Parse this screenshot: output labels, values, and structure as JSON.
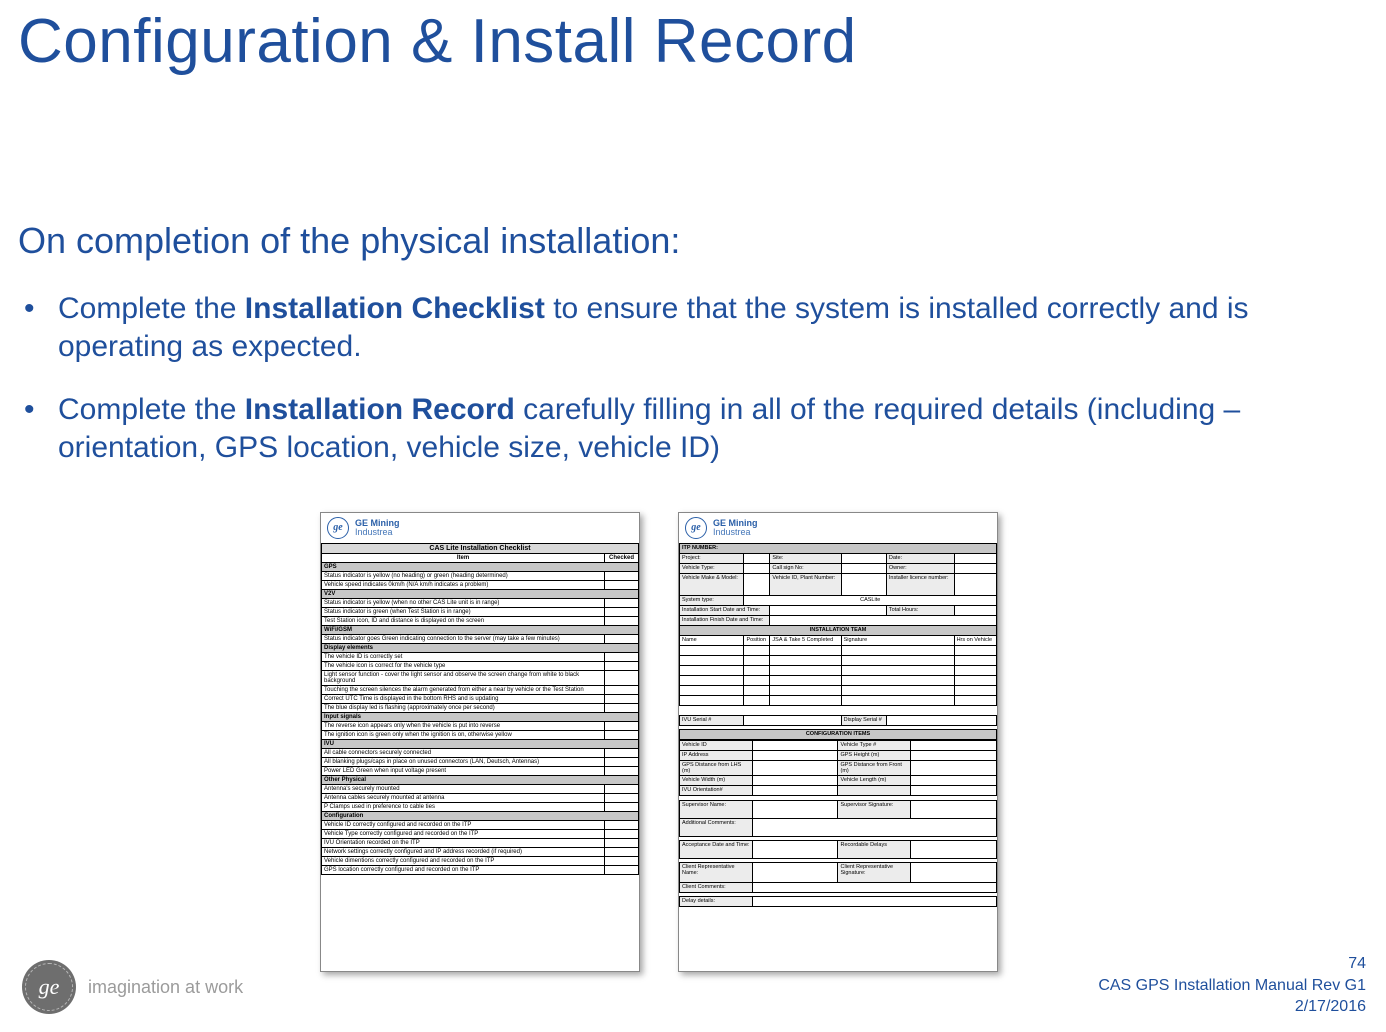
{
  "title": "Configuration & Install Record",
  "subtitle": "On completion of the physical installation:",
  "bullets": [
    {
      "prefix": "Complete the ",
      "bold": "Installation Checklist",
      "suffix": " to ensure that the system is installed correctly and is operating as expected."
    },
    {
      "prefix": "Complete the ",
      "bold": "Installation Record",
      "suffix": " carefully filling in all of the required details (including – orientation, GPS location, vehicle size, vehicle ID)"
    }
  ],
  "checklist": {
    "brand_line1": "GE Mining",
    "brand_line2": "Industrea",
    "title": "CAS Lite Installation Checklist",
    "col_item": "Item",
    "col_checked": "Checked",
    "sections": [
      {
        "name": "GPS",
        "rows": [
          "Status indicator is yellow (no heading) or green (heading determined)",
          "Vehicle speed indicates 0km/h (N/A km/h indicates a problem)"
        ]
      },
      {
        "name": "V2V",
        "rows": [
          "Status indicator is yellow (when no other CAS Lite unit is in range)",
          "Status indicator is green (when Test Station is in range)",
          "Test Station icon, ID and distance is displayed on the screen"
        ]
      },
      {
        "name": "WiFi/GSM",
        "rows": [
          "Status indicator goes Green indicating connection to the server (may take a few minutes)"
        ]
      },
      {
        "name": "Display elements",
        "rows": [
          "The vehicle ID is correctly set",
          "The vehicle icon is correct for the vehicle type",
          "Light sensor function - cover the light sensor and observe the screen change from white to black background",
          "Touching the screen silences the alarm generated from either a near by vehicle or the Test Station",
          "Correct UTC Time is displayed in the bottom RHS and is updating",
          "The blue display led is flashing (approximately once per second)"
        ]
      },
      {
        "name": "Input signals",
        "rows": [
          "The reverse icon appears only when the vehicle is put into reverse",
          "The ignition icon is green only when the ignition is on, otherwise yellow"
        ]
      },
      {
        "name": "IVU",
        "rows": [
          "All cable connectors securely connected",
          "All blanking plugs/caps in place on unused connectors (LAN, Deutsch, Antennas)",
          "Power LED Green when input voltage present"
        ]
      },
      {
        "name": "Other Physical",
        "rows": [
          "Antenna's securely mounted",
          "Antenna cables securely mounted at antenna",
          "P Clamps used in preference to cable ties"
        ]
      },
      {
        "name": "Configuration",
        "rows": [
          "Vehicle ID correctly configured and recorded on the ITP",
          "Vehicle Type correctly configured and recorded on the ITP",
          "IVU Orientation recorded on the ITP",
          "Network settings correctly configured and IP address recorded (if required)",
          "Vehicle dimentions correctly configured and recorded on the ITP",
          "GPS location correctly configured and recorded on the ITP"
        ]
      }
    ]
  },
  "record": {
    "brand_line1": "GE Mining",
    "brand_line2": "Industrea",
    "itp_number": "ITP NUMBER:",
    "row1": [
      "Project:",
      "Site:",
      "Date:"
    ],
    "row2": [
      "Vehicle Type:",
      "Call sign No:",
      "Owner:"
    ],
    "row3a": "Vehicle Make & Model:",
    "row3b": "Vehicle ID, Plant Number:",
    "row3c": "Installer licence number:",
    "system_type": "System type:",
    "system_val": "CASLite",
    "start": "Installation Start Date and Time:",
    "total": "Total Hours:",
    "finish": "Installation Finish Date and Time:",
    "team_header": "INSTALLATION TEAM",
    "team_cols": [
      "Name",
      "Position",
      "JSA & Take 5 Completed",
      "Signature",
      "Hrs on Vehicle"
    ],
    "ivu_serial": "IVU Serial #",
    "display_serial": "Display Serial #",
    "config_header": "CONFIGURATION ITEMS",
    "cfg_left": [
      "Vehicle ID",
      "IP Address",
      "GPS Distance from LHS (m)",
      "Vehicle Width (m)",
      "IVU Orientation#"
    ],
    "cfg_right": [
      "Vehicle Type #",
      "GPS Height (m)",
      "GPS Distance from Front (m)",
      "Vehicle Length (m)",
      ""
    ],
    "sup_name": "Supervisor Name:",
    "sup_sig": "Supervisor Signature:",
    "add_comments": "Additional Comments:",
    "acc_date": "Acceptance Date and Time:",
    "rec_delays": "Recordable Delays",
    "client_rep": "Client Representative Name:",
    "client_sig": "Client Representative Signature:",
    "client_comments": "Client Comments:",
    "delay_details": "Delay details:"
  },
  "footer": {
    "tagline": "imagination at work",
    "page": "74",
    "doc": "CAS GPS Installation Manual Rev G1",
    "date": "2/17/2016"
  },
  "colors": {
    "brand_blue": "#1f4f9c",
    "grey_text": "#9b9b9b",
    "section_bg": "#c7c7c7"
  }
}
